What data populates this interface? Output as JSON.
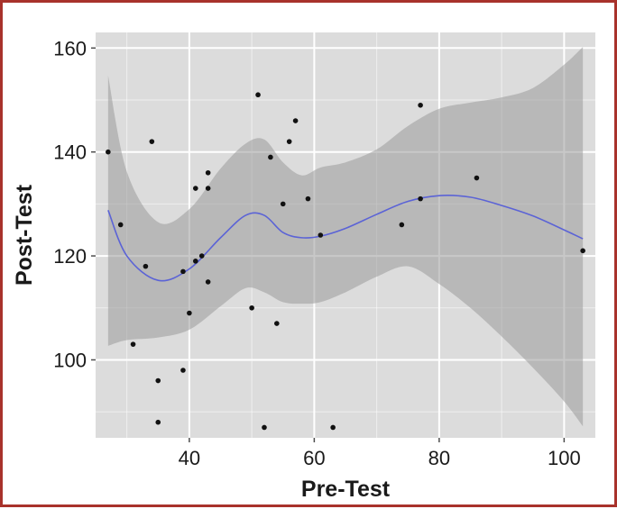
{
  "chart_data": {
    "type": "scatter",
    "title": "",
    "xlabel": "Pre-Test",
    "ylabel": "Post-Test",
    "xlim": [
      25,
      105
    ],
    "ylim": [
      85,
      163
    ],
    "x_ticks": [
      40,
      60,
      80,
      100
    ],
    "y_ticks": [
      100,
      120,
      140,
      160
    ],
    "x_tick_labels": [
      "40",
      "60",
      "80",
      "100"
    ],
    "y_tick_labels": [
      "100",
      "120",
      "140",
      "160"
    ],
    "grid": true,
    "legend": "none",
    "colors": {
      "panel": "#dcdcdc",
      "grid": "#ffffff",
      "points": "#111111",
      "smooth_line": "#5b63d6",
      "ribbon": "#9a9a9a",
      "frame": "#a8322b"
    },
    "points": [
      [
        27,
        140
      ],
      [
        29,
        126
      ],
      [
        31,
        103
      ],
      [
        33,
        118
      ],
      [
        34,
        142
      ],
      [
        35,
        96
      ],
      [
        35,
        88
      ],
      [
        39,
        117
      ],
      [
        39,
        98
      ],
      [
        40,
        109
      ],
      [
        41,
        133
      ],
      [
        41,
        119
      ],
      [
        42,
        120
      ],
      [
        43,
        136
      ],
      [
        43,
        133
      ],
      [
        43,
        115
      ],
      [
        50,
        110
      ],
      [
        51,
        151
      ],
      [
        52,
        87
      ],
      [
        53,
        139
      ],
      [
        54,
        107
      ],
      [
        55,
        130
      ],
      [
        56,
        142
      ],
      [
        57,
        146
      ],
      [
        59,
        131
      ],
      [
        61,
        124
      ],
      [
        63,
        87
      ],
      [
        74,
        126
      ],
      [
        77,
        149
      ],
      [
        77,
        131
      ],
      [
        86,
        135
      ],
      [
        103,
        121
      ]
    ],
    "smooth_fit": {
      "x": [
        27,
        30,
        35,
        40,
        45,
        49,
        52,
        55,
        58,
        61,
        65,
        70,
        75,
        80,
        85,
        90,
        95,
        100,
        103
      ],
      "y": [
        128.8,
        120.0,
        115.3,
        117.5,
        123.5,
        127.8,
        127.8,
        124.5,
        123.5,
        123.8,
        125.3,
        128.0,
        130.5,
        131.6,
        131.3,
        129.7,
        127.7,
        125.0,
        123.3
      ],
      "lower": [
        102.7,
        103.8,
        104.3,
        105.8,
        110.3,
        113.8,
        113.0,
        111.1,
        110.8,
        111.1,
        113.0,
        116.0,
        118.0,
        114.6,
        110.0,
        104.5,
        98.5,
        92.0,
        87.2
      ],
      "upper": [
        154.7,
        136.2,
        126.5,
        129.0,
        136.8,
        141.6,
        142.4,
        138.0,
        135.5,
        137.0,
        138.0,
        140.5,
        145.0,
        148.3,
        149.5,
        150.5,
        152.3,
        156.8,
        160.2
      ]
    }
  }
}
